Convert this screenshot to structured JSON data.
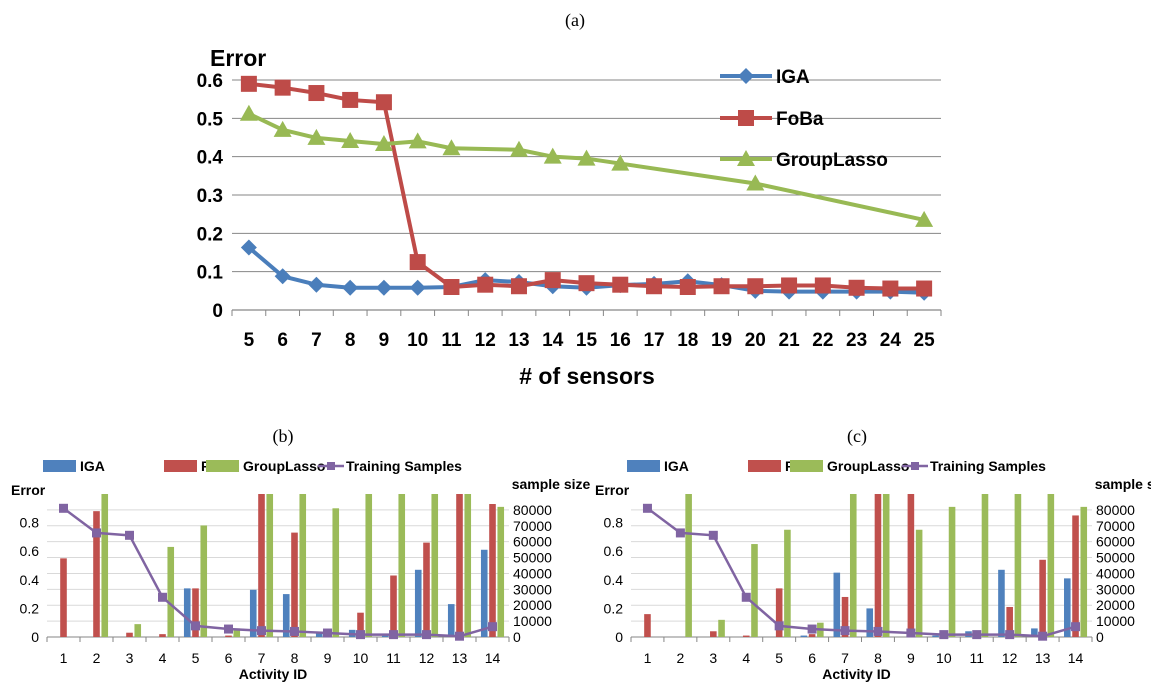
{
  "figure": {
    "panel_a_label": "(a)",
    "panel_b_label": "(b)",
    "panel_c_label": "(c)"
  },
  "chart_data": [
    {
      "type": "line",
      "ylabel": "Error",
      "xlabel": "# of sensors",
      "x": [
        5,
        6,
        7,
        8,
        9,
        10,
        11,
        12,
        13,
        14,
        15,
        16,
        17,
        18,
        19,
        20,
        21,
        22,
        23,
        24,
        25
      ],
      "ylim": [
        0,
        0.6
      ],
      "yticks": [
        "0",
        "0.1",
        "0.2",
        "0.3",
        "0.4",
        "0.5",
        "0.6"
      ],
      "grid": true,
      "legend": "top-right",
      "series": [
        {
          "name": "IGA",
          "color": "#4a7ebb",
          "marker": "diamond",
          "points": [
            [
              5,
              0.163
            ],
            [
              6,
              0.088
            ],
            [
              7,
              0.066
            ],
            [
              8,
              0.058
            ],
            [
              9,
              0.058
            ],
            [
              10,
              0.058
            ],
            [
              11,
              0.06
            ],
            [
              12,
              0.078
            ],
            [
              13,
              0.073
            ],
            [
              14,
              0.062
            ],
            [
              15,
              0.058
            ],
            [
              16,
              0.065
            ],
            [
              17,
              0.068
            ],
            [
              18,
              0.075
            ],
            [
              19,
              0.065
            ],
            [
              20,
              0.05
            ],
            [
              21,
              0.048
            ],
            [
              22,
              0.048
            ],
            [
              23,
              0.048
            ],
            [
              24,
              0.048
            ],
            [
              25,
              0.045
            ]
          ]
        },
        {
          "name": "FoBa",
          "color": "#be4b48",
          "marker": "square",
          "points": [
            [
              5,
              0.59
            ],
            [
              6,
              0.58
            ],
            [
              7,
              0.566
            ],
            [
              8,
              0.548
            ],
            [
              9,
              0.542
            ],
            [
              10,
              0.125
            ],
            [
              11,
              0.06
            ],
            [
              12,
              0.066
            ],
            [
              13,
              0.062
            ],
            [
              14,
              0.078
            ],
            [
              15,
              0.07
            ],
            [
              16,
              0.066
            ],
            [
              17,
              0.062
            ],
            [
              18,
              0.06
            ],
            [
              19,
              0.062
            ],
            [
              20,
              0.062
            ],
            [
              21,
              0.064
            ],
            [
              22,
              0.064
            ],
            [
              23,
              0.058
            ],
            [
              24,
              0.056
            ],
            [
              25,
              0.056
            ]
          ]
        },
        {
          "name": "GroupLasso",
          "color": "#98b954",
          "marker": "triangle",
          "points": [
            [
              5,
              0.512
            ],
            [
              6,
              0.47
            ],
            [
              7,
              0.449
            ],
            [
              8,
              0.441
            ],
            [
              9,
              0.433
            ],
            [
              10,
              0.44
            ],
            [
              11,
              0.422
            ],
            [
              13,
              0.418
            ],
            [
              14,
              0.4
            ],
            [
              15,
              0.395
            ],
            [
              16,
              0.382
            ],
            [
              20,
              0.33
            ],
            [
              25,
              0.235
            ]
          ]
        }
      ]
    },
    {
      "type": "bar",
      "ylabel": "Error",
      "y2label": "sample size",
      "xlabel": "Activity ID",
      "categories": [
        "1",
        "2",
        "3",
        "4",
        "5",
        "6",
        "7",
        "8",
        "9",
        "10",
        "11",
        "12",
        "13",
        "14"
      ],
      "ylim": [
        0,
        1.0
      ],
      "yticks": [
        "0",
        "0.2",
        "0.4",
        "0.6",
        "0.8"
      ],
      "y2lim": [
        0,
        90000
      ],
      "y2ticks": [
        "0",
        "10000",
        "20000",
        "30000",
        "40000",
        "50000",
        "60000",
        "70000",
        "80000"
      ],
      "grid": true,
      "legend": "top",
      "series": [
        {
          "name": "IGA",
          "color": "#4f81bd",
          "values": [
            0,
            0,
            0,
            0,
            0.34,
            0,
            0.33,
            0.3,
            0.03,
            0.05,
            0.01,
            0.47,
            0.23,
            0.61
          ]
        },
        {
          "name": "FoBa",
          "color": "#c0504d",
          "values": [
            0.55,
            0.88,
            0.03,
            0.02,
            0.34,
            0.01,
            1.0,
            0.73,
            0.05,
            0.17,
            0.43,
            0.66,
            1.0,
            0.93
          ]
        },
        {
          "name": "GroupLasso",
          "color": "#9bbb59",
          "values": [
            0,
            1.0,
            0.09,
            0.63,
            0.78,
            0.06,
            1.0,
            1.0,
            0.9,
            1.0,
            1.0,
            1.0,
            1.0,
            0.91
          ]
        },
        {
          "name": "Training Samples",
          "color": "#8064a2",
          "axis": "right",
          "type": "line",
          "values": [
            81000,
            65500,
            64000,
            25000,
            7000,
            5000,
            4000,
            3500,
            2500,
            1500,
            1500,
            1500,
            500,
            6500
          ]
        }
      ]
    },
    {
      "type": "bar",
      "ylabel": "Error",
      "y2label": "sample size",
      "xlabel": "Activity ID",
      "categories": [
        "1",
        "2",
        "3",
        "4",
        "5",
        "6",
        "7",
        "8",
        "9",
        "10",
        "11",
        "12",
        "13",
        "14"
      ],
      "ylim": [
        0,
        1.0
      ],
      "yticks": [
        "0",
        "0.2",
        "0.4",
        "0.6",
        "0.8"
      ],
      "y2lim": [
        0,
        90000
      ],
      "y2ticks": [
        "0",
        "10000",
        "20000",
        "30000",
        "40000",
        "50000",
        "60000",
        "70000",
        "80000"
      ],
      "grid": true,
      "legend": "top",
      "series": [
        {
          "name": "IGA",
          "color": "#4f81bd",
          "values": [
            0,
            0,
            0,
            0,
            0,
            0.01,
            0.45,
            0.2,
            0,
            0.01,
            0.04,
            0.47,
            0.06,
            0.41
          ]
        },
        {
          "name": "FoBa",
          "color": "#c0504d",
          "values": [
            0.16,
            0,
            0.04,
            0.01,
            0.34,
            0.02,
            0.28,
            1.0,
            1.0,
            0.02,
            0.01,
            0.21,
            0.54,
            0.85
          ]
        },
        {
          "name": "GroupLasso",
          "color": "#9bbb59",
          "values": [
            0,
            1.0,
            0.12,
            0.65,
            0.75,
            0.1,
            1.0,
            1.0,
            0.75,
            0.91,
            1.0,
            1.0,
            1.0,
            0.91
          ]
        },
        {
          "name": "Training Samples",
          "color": "#8064a2",
          "axis": "right",
          "type": "line",
          "values": [
            81000,
            65500,
            64000,
            25000,
            7000,
            5000,
            4000,
            3500,
            2500,
            1500,
            1500,
            1500,
            500,
            6500
          ]
        }
      ]
    }
  ]
}
